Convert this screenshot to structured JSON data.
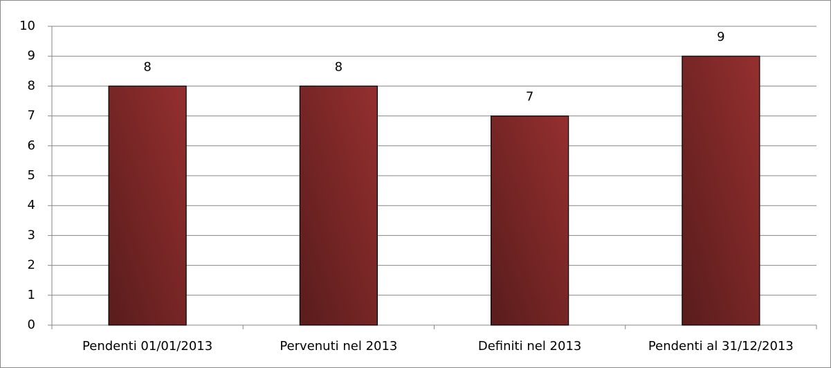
{
  "chart_data": {
    "type": "bar",
    "categories": [
      "Pendenti 01/01/2013",
      "Pervenuti nel 2013",
      "Definiti nel 2013",
      "Pendenti al 31/12/2013"
    ],
    "values": [
      8,
      8,
      7,
      9
    ],
    "color": "#952f2f",
    "ylim": [
      0,
      10
    ],
    "yticks": [
      0,
      1,
      2,
      3,
      4,
      5,
      6,
      7,
      8,
      9,
      10
    ],
    "grid": true
  }
}
